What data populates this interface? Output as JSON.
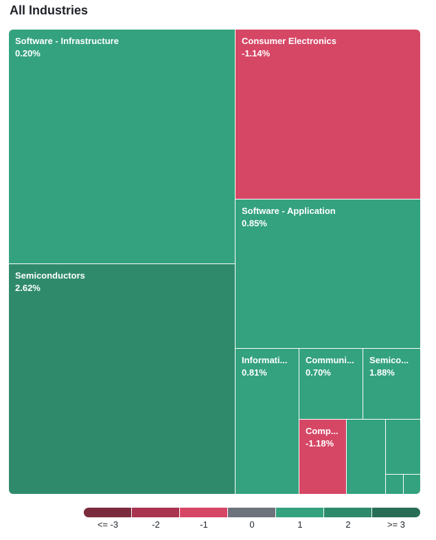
{
  "header": {
    "title": "All Industries"
  },
  "chart_data": {
    "type": "treemap",
    "tiles": [
      {
        "name": "Software - Infrastructure",
        "value_label": "0.20%",
        "change": 0.2,
        "color": "#34a27f"
      },
      {
        "name": "Semiconductors",
        "value_label": "2.62%",
        "change": 2.62,
        "color": "#2f8a6c"
      },
      {
        "name": "Consumer Electronics",
        "value_label": "-1.14%",
        "change": -1.14,
        "color": "#d64766"
      },
      {
        "name": "Software - Application",
        "value_label": "0.85%",
        "change": 0.85,
        "color": "#34a27f"
      },
      {
        "name": "Informati...",
        "value_label": "0.81%",
        "change": 0.81,
        "color": "#34a27f"
      },
      {
        "name": "Communi...",
        "value_label": "0.70%",
        "change": 0.7,
        "color": "#34a27f"
      },
      {
        "name": "Semico...",
        "value_label": "1.88%",
        "change": 1.88,
        "color": "#34a27f"
      },
      {
        "name": "Comp...",
        "value_label": "-1.18%",
        "change": -1.18,
        "color": "#d64766"
      },
      {
        "name": "",
        "value_label": "",
        "color": "#34a27f"
      },
      {
        "name": "",
        "value_label": "",
        "color": "#34a27f"
      },
      {
        "name": "",
        "value_label": "",
        "color": "#34a27f"
      },
      {
        "name": "",
        "value_label": "",
        "color": "#34a27f"
      },
      {
        "name": "",
        "value_label": "",
        "color": "#34a27f"
      }
    ],
    "legend": [
      {
        "label": "<= -3",
        "color": "#7b2b3e"
      },
      {
        "label": "-2",
        "color": "#a83450"
      },
      {
        "label": "-1",
        "color": "#d64766"
      },
      {
        "label": "0",
        "color": "#6d737c"
      },
      {
        "label": "1",
        "color": "#34a27f"
      },
      {
        "label": "2",
        "color": "#2f8a6c"
      },
      {
        "label": ">= 3",
        "color": "#286e57"
      }
    ]
  }
}
